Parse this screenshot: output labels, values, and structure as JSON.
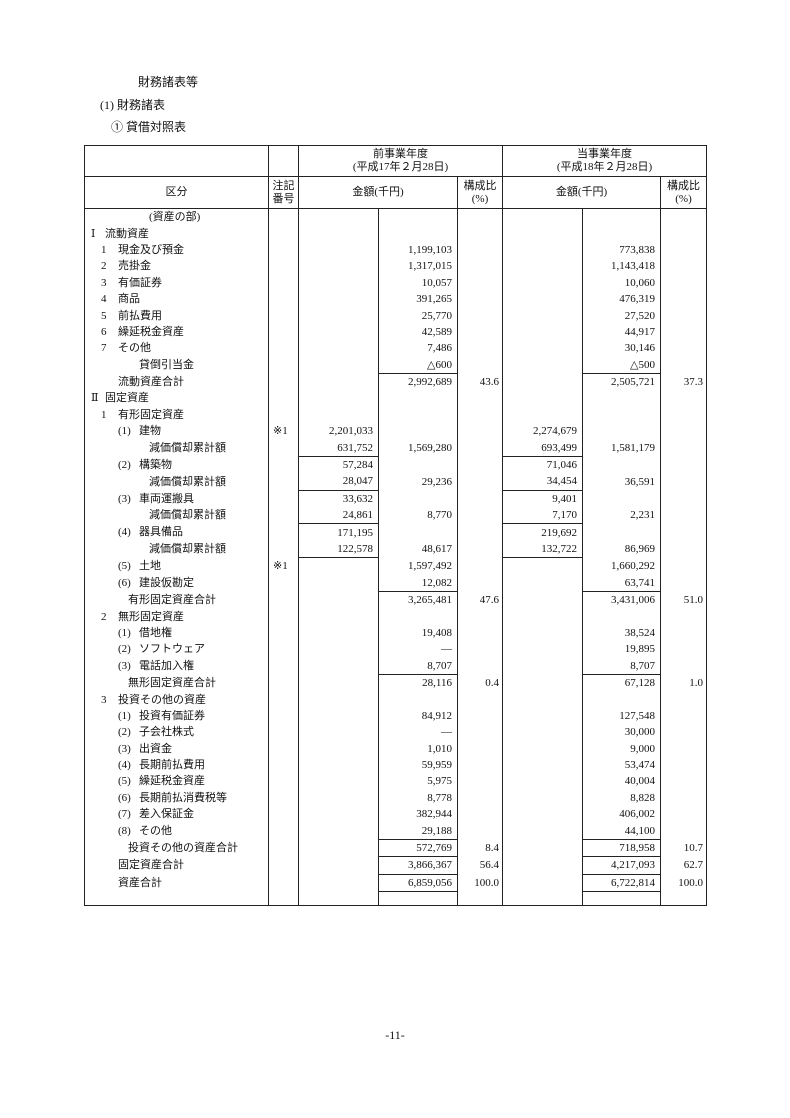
{
  "headings": {
    "h1": "財務諸表等",
    "h2": "(1) 財務諸表",
    "h3": "① 貸借対照表"
  },
  "table": {
    "col_label": "区分",
    "col_note": "注記番号",
    "prev_period": "前事業年度",
    "prev_date": "(平成17年２月28日)",
    "cur_period": "当事業年度",
    "cur_date": "(平成18年２月28日)",
    "amount": "金額(千円)",
    "ratio": "構成比(%)",
    "rows": [
      {
        "kind": "heading",
        "num": "",
        "text": "(資産の部)",
        "note": "",
        "ps": "",
        "pm": "",
        "pp": "",
        "cs": "",
        "cm": "",
        "cp": ""
      },
      {
        "kind": "section",
        "num": "Ⅰ",
        "text": "流動資産",
        "note": "",
        "ps": "",
        "pm": "",
        "pp": "",
        "cs": "",
        "cm": "",
        "cp": ""
      },
      {
        "kind": "item",
        "num": "1",
        "text": "現金及び預金",
        "note": "",
        "ps": "",
        "pm": "1,199,103",
        "pp": "",
        "cs": "",
        "cm": "773,838",
        "cp": ""
      },
      {
        "kind": "item",
        "num": "2",
        "text": "売掛金",
        "note": "",
        "ps": "",
        "pm": "1,317,015",
        "pp": "",
        "cs": "",
        "cm": "1,143,418",
        "cp": ""
      },
      {
        "kind": "item",
        "num": "3",
        "text": "有価証券",
        "note": "",
        "ps": "",
        "pm": "10,057",
        "pp": "",
        "cs": "",
        "cm": "10,060",
        "cp": ""
      },
      {
        "kind": "item",
        "num": "4",
        "text": "商品",
        "note": "",
        "ps": "",
        "pm": "391,265",
        "pp": "",
        "cs": "",
        "cm": "476,319",
        "cp": ""
      },
      {
        "kind": "item",
        "num": "5",
        "text": "前払費用",
        "note": "",
        "ps": "",
        "pm": "25,770",
        "pp": "",
        "cs": "",
        "cm": "27,520",
        "cp": ""
      },
      {
        "kind": "item",
        "num": "6",
        "text": "繰延税金資産",
        "note": "",
        "ps": "",
        "pm": "42,589",
        "pp": "",
        "cs": "",
        "cm": "44,917",
        "cp": ""
      },
      {
        "kind": "item",
        "num": "7",
        "text": "その他",
        "note": "",
        "ps": "",
        "pm": "7,486",
        "pp": "",
        "cs": "",
        "cm": "30,146",
        "cp": ""
      },
      {
        "kind": "allowance",
        "num": "",
        "text": "貸倒引当金",
        "note": "",
        "ps": "",
        "pm": "△600",
        "pp": "",
        "cs": "",
        "cm": "△500",
        "cp": ""
      },
      {
        "kind": "total",
        "num": "",
        "text": "流動資産合計",
        "note": "",
        "ps": "",
        "pm": "2,992,689",
        "pp": "43.6",
        "cs": "",
        "cm": "2,505,721",
        "cp": "37.3"
      },
      {
        "kind": "section",
        "num": "Ⅱ",
        "text": "固定資産",
        "note": "",
        "ps": "",
        "pm": "",
        "pp": "",
        "cs": "",
        "cm": "",
        "cp": ""
      },
      {
        "kind": "item",
        "num": "1",
        "text": "有形固定資産",
        "note": "",
        "ps": "",
        "pm": "",
        "pp": "",
        "cs": "",
        "cm": "",
        "cp": ""
      },
      {
        "kind": "paren",
        "num": "(1)",
        "text": "建物",
        "note": "※1",
        "ps": "2,201,033",
        "pm": "",
        "pp": "",
        "cs": "2,274,679",
        "cm": "",
        "cp": ""
      },
      {
        "kind": "depr",
        "num": "",
        "text": "減価償却累計額",
        "note": "",
        "ps": "631,752",
        "pm": "1,569,280",
        "pp": "",
        "cs": "693,499",
        "cm": "1,581,179",
        "cp": ""
      },
      {
        "kind": "paren",
        "num": "(2)",
        "text": "構築物",
        "note": "",
        "ps": "57,284",
        "pm": "",
        "pp": "",
        "cs": "71,046",
        "cm": "",
        "cp": ""
      },
      {
        "kind": "depr",
        "num": "",
        "text": "減価償却累計額",
        "note": "",
        "ps": "28,047",
        "pm": "29,236",
        "pp": "",
        "cs": "34,454",
        "cm": "36,591",
        "cp": ""
      },
      {
        "kind": "paren",
        "num": "(3)",
        "text": "車両運搬具",
        "note": "",
        "ps": "33,632",
        "pm": "",
        "pp": "",
        "cs": "9,401",
        "cm": "",
        "cp": ""
      },
      {
        "kind": "depr",
        "num": "",
        "text": "減価償却累計額",
        "note": "",
        "ps": "24,861",
        "pm": "8,770",
        "pp": "",
        "cs": "7,170",
        "cm": "2,231",
        "cp": ""
      },
      {
        "kind": "paren",
        "num": "(4)",
        "text": "器具備品",
        "note": "",
        "ps": "171,195",
        "pm": "",
        "pp": "",
        "cs": "219,692",
        "cm": "",
        "cp": ""
      },
      {
        "kind": "depr",
        "num": "",
        "text": "減価償却累計額",
        "note": "",
        "ps": "122,578",
        "pm": "48,617",
        "pp": "",
        "cs": "132,722",
        "cm": "86,969",
        "cp": ""
      },
      {
        "kind": "paren",
        "num": "(5)",
        "text": "土地",
        "note": "※1",
        "ps": "",
        "pm": "1,597,492",
        "pp": "",
        "cs": "",
        "cm": "1,660,292",
        "cp": ""
      },
      {
        "kind": "paren",
        "num": "(6)",
        "text": "建設仮勘定",
        "note": "",
        "ps": "",
        "pm": "12,082",
        "pp": "",
        "cs": "",
        "cm": "63,741",
        "cp": ""
      },
      {
        "kind": "subtotal",
        "num": "",
        "text": "有形固定資産合計",
        "note": "",
        "ps": "",
        "pm": "3,265,481",
        "pp": "47.6",
        "cs": "",
        "cm": "3,431,006",
        "cp": "51.0"
      },
      {
        "kind": "item",
        "num": "2",
        "text": "無形固定資産",
        "note": "",
        "ps": "",
        "pm": "",
        "pp": "",
        "cs": "",
        "cm": "",
        "cp": ""
      },
      {
        "kind": "paren",
        "num": "(1)",
        "text": "借地権",
        "note": "",
        "ps": "",
        "pm": "19,408",
        "pp": "",
        "cs": "",
        "cm": "38,524",
        "cp": ""
      },
      {
        "kind": "paren",
        "num": "(2)",
        "text": "ソフトウェア",
        "note": "",
        "ps": "",
        "pm": "—",
        "pp": "",
        "cs": "",
        "cm": "19,895",
        "cp": ""
      },
      {
        "kind": "paren",
        "num": "(3)",
        "text": "電話加入権",
        "note": "",
        "ps": "",
        "pm": "8,707",
        "pp": "",
        "cs": "",
        "cm": "8,707",
        "cp": ""
      },
      {
        "kind": "subtotal",
        "num": "",
        "text": "無形固定資産合計",
        "note": "",
        "ps": "",
        "pm": "28,116",
        "pp": "0.4",
        "cs": "",
        "cm": "67,128",
        "cp": "1.0"
      },
      {
        "kind": "item",
        "num": "3",
        "text": "投資その他の資産",
        "note": "",
        "ps": "",
        "pm": "",
        "pp": "",
        "cs": "",
        "cm": "",
        "cp": ""
      },
      {
        "kind": "paren",
        "num": "(1)",
        "text": "投資有価証券",
        "note": "",
        "ps": "",
        "pm": "84,912",
        "pp": "",
        "cs": "",
        "cm": "127,548",
        "cp": ""
      },
      {
        "kind": "paren",
        "num": "(2)",
        "text": "子会社株式",
        "note": "",
        "ps": "",
        "pm": "—",
        "pp": "",
        "cs": "",
        "cm": "30,000",
        "cp": ""
      },
      {
        "kind": "paren",
        "num": "(3)",
        "text": "出資金",
        "note": "",
        "ps": "",
        "pm": "1,010",
        "pp": "",
        "cs": "",
        "cm": "9,000",
        "cp": ""
      },
      {
        "kind": "paren",
        "num": "(4)",
        "text": "長期前払費用",
        "note": "",
        "ps": "",
        "pm": "59,959",
        "pp": "",
        "cs": "",
        "cm": "53,474",
        "cp": ""
      },
      {
        "kind": "paren",
        "num": "(5)",
        "text": "繰延税金資産",
        "note": "",
        "ps": "",
        "pm": "5,975",
        "pp": "",
        "cs": "",
        "cm": "40,004",
        "cp": ""
      },
      {
        "kind": "paren",
        "num": "(6)",
        "text": "長期前払消費税等",
        "note": "",
        "ps": "",
        "pm": "8,778",
        "pp": "",
        "cs": "",
        "cm": "8,828",
        "cp": ""
      },
      {
        "kind": "paren",
        "num": "(7)",
        "text": "差入保証金",
        "note": "",
        "ps": "",
        "pm": "382,944",
        "pp": "",
        "cs": "",
        "cm": "406,002",
        "cp": ""
      },
      {
        "kind": "paren",
        "num": "(8)",
        "text": "その他",
        "note": "",
        "ps": "",
        "pm": "29,188",
        "pp": "",
        "cs": "",
        "cm": "44,100",
        "cp": ""
      },
      {
        "kind": "subtotal",
        "num": "",
        "text": "投資その他の資産合計",
        "note": "",
        "ps": "",
        "pm": "572,769",
        "pp": "8.4",
        "cs": "",
        "cm": "718,958",
        "cp": "10.7"
      },
      {
        "kind": "total",
        "num": "",
        "text": "固定資産合計",
        "note": "",
        "ps": "",
        "pm": "3,866,367",
        "pp": "56.4",
        "cs": "",
        "cm": "4,217,093",
        "cp": "62.7"
      },
      {
        "kind": "grandtotal",
        "num": "",
        "text": "資産合計",
        "note": "",
        "ps": "",
        "pm": "6,859,056",
        "pp": "100.0",
        "cs": "",
        "cm": "6,722,814",
        "cp": "100.0"
      }
    ]
  },
  "page_number": "-11-"
}
